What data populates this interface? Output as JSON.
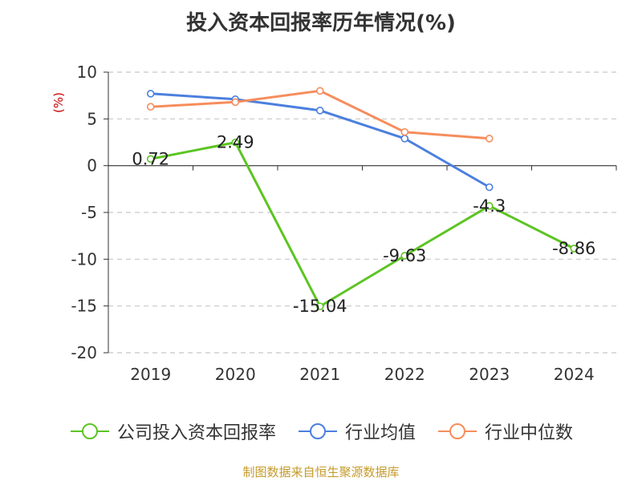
{
  "title": "投入资本回报率历年情况(%)",
  "source": "制图数据来自恒生聚源数据库",
  "colors": {
    "axis": "#333333",
    "grid": "#c8c8c8",
    "unit": "#cc0000"
  },
  "chart_data": {
    "type": "line",
    "title": "投入资本回报率历年情况(%)",
    "ylabel": "(%)",
    "xlabel": "",
    "categories": [
      "2019",
      "2020",
      "2021",
      "2022",
      "2023",
      "2024"
    ],
    "ylim": [
      -20,
      10
    ],
    "yticks": [
      10,
      5,
      0,
      -5,
      -10,
      -15,
      -20
    ],
    "grid": true,
    "legend_position": "bottom",
    "series": [
      {
        "name": "公司投入资本回报率",
        "color": "#5cc423",
        "values": [
          0.72,
          2.49,
          -15.04,
          -9.63,
          -4.3,
          -8.86
        ],
        "labels": [
          "0.72",
          "2.49",
          "-15.04",
          "-9.63",
          "-4.3",
          "-8.86"
        ]
      },
      {
        "name": "行业均值",
        "color": "#4c7fde",
        "values": [
          7.7,
          7.1,
          5.9,
          2.9,
          -2.3,
          null
        ],
        "labels": null
      },
      {
        "name": "行业中位数",
        "color": "#f68d5c",
        "values": [
          6.3,
          6.8,
          8.0,
          3.6,
          2.9,
          null
        ],
        "labels": null
      }
    ]
  }
}
